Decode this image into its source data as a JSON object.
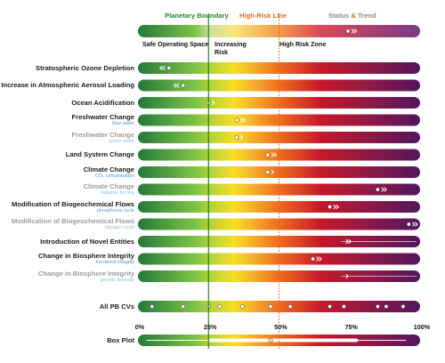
{
  "header": {
    "boundary_label": "Planetary Boundary",
    "high_risk_label": "High-Risk Line",
    "status_label_1": "Status",
    "status_amp": "&",
    "status_label_2": "Trend"
  },
  "zones": {
    "safe": "Safe Operating Space",
    "increasing_line1": "Increasing",
    "increasing_line2": "Risk",
    "high": "High Risk Zone"
  },
  "colors": {
    "boundary_line": "#1a7a1a",
    "high_risk_line": "#e06a1a",
    "green_dark": "#25793a",
    "green_light": "#7cc246",
    "yellow": "#f7de22",
    "orange": "#ee6d1e",
    "red": "#c4182b",
    "purple": "#52155e",
    "marker": "#ffffff",
    "faded_text": "#9c9c9c",
    "subtitle_text": "#4a9ad8"
  },
  "chart_data": {
    "type": "bar",
    "title": "",
    "boundary_percentile": 25,
    "high_risk_percentile": 50,
    "rows": [
      {
        "label": "Stratospheric Ozone Depletion",
        "subtitle": "",
        "faded": false,
        "status": 11,
        "trend": "double-left",
        "line": false
      },
      {
        "label": "Increase in Atmospheric Aerosol Loading",
        "subtitle": "",
        "faded": false,
        "status": 16,
        "trend": "double-left",
        "line": false
      },
      {
        "label": "Ocean Acidification",
        "subtitle": "",
        "faded": false,
        "status": 25,
        "trend": "single-right",
        "line": false
      },
      {
        "label": "Freshwater Change",
        "subtitle": "blue water",
        "faded": false,
        "status": 35,
        "trend": "double-right",
        "line": false
      },
      {
        "label": "Freshwater Change",
        "subtitle": "green water",
        "faded": true,
        "status": 35,
        "trend": "single-right",
        "line": false
      },
      {
        "label": "Land System Change",
        "subtitle": "",
        "faded": false,
        "status": 46,
        "trend": "double-right",
        "line": false
      },
      {
        "label": "Climate Change",
        "subtitle": "CO₂ concentration",
        "faded": false,
        "status": 46,
        "trend": "single-right",
        "line": false
      },
      {
        "label": "Climate Change",
        "subtitle": "radiative forcing",
        "faded": true,
        "status": 85,
        "trend": "double-right",
        "line": false
      },
      {
        "label": "Modification of Biogeochemical Flows",
        "subtitle": "phosphorus cycle",
        "faded": false,
        "status": 68,
        "trend": "double-right",
        "line": false
      },
      {
        "label": "Modification of Biogeochemical Flows",
        "subtitle": "nitrogen cycle",
        "faded": true,
        "status": 96,
        "trend": "double-right",
        "line": false
      },
      {
        "label": "Introduction of Novel Entities",
        "subtitle": "",
        "faded": false,
        "status": null,
        "trend": "double-right",
        "trend_at": 74,
        "line": true
      },
      {
        "label": "Change in Biosphere Integrity",
        "subtitle": "functional integrity",
        "faded": false,
        "status": 62,
        "trend": "double-right",
        "line": false
      },
      {
        "label": "Change in Biosphere Integrity",
        "subtitle": "genetic diversity",
        "faded": true,
        "status": null,
        "trend": "single-right",
        "trend_at": 74,
        "line": true
      }
    ],
    "all_pb_label": "All PB CVs",
    "all_pb_points": [
      5,
      16,
      25,
      29,
      37,
      47,
      54,
      68,
      73,
      85,
      88,
      94
    ],
    "boxplot_label": "Box Plot",
    "boxplot": {
      "whisker_low": 3,
      "q1": 25,
      "median": 47,
      "q3": 78,
      "whisker_high": 95
    },
    "x_ticks": [
      "0%",
      "25%",
      "50%",
      "75%",
      "100%"
    ],
    "x_tick_values": [
      0,
      25,
      50,
      75,
      100
    ]
  }
}
